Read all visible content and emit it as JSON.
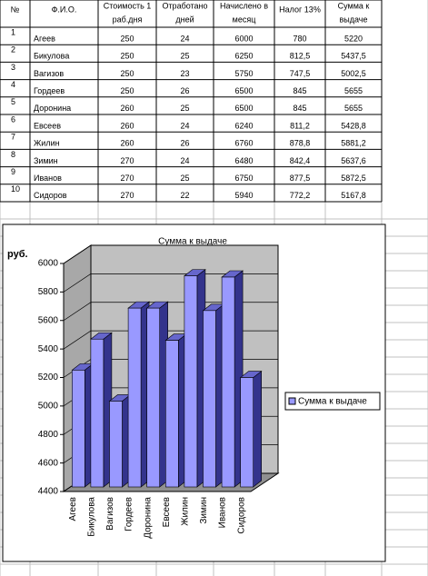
{
  "table": {
    "header": [
      [
        "№"
      ],
      [
        "Ф.И.О."
      ],
      [
        "Стоимость 1",
        "раб.дня"
      ],
      [
        "Отработано",
        "дней"
      ],
      [
        "Начислено в",
        "месяц"
      ],
      [
        "Налог 13%"
      ],
      [
        "Сумма к",
        "выдаче"
      ]
    ],
    "rows": [
      [
        "1",
        "Агеев",
        "250",
        "24",
        "6000",
        "780",
        "5220"
      ],
      [
        "2",
        "Бикулова",
        "250",
        "25",
        "6250",
        "812,5",
        "5437,5"
      ],
      [
        "3",
        "Вагизов",
        "250",
        "23",
        "5750",
        "747,5",
        "5002,5"
      ],
      [
        "4",
        "Гордеев",
        "250",
        "26",
        "6500",
        "845",
        "5655"
      ],
      [
        "5",
        "Доронина",
        "260",
        "25",
        "6500",
        "845",
        "5655"
      ],
      [
        "6",
        "Евсеев",
        "260",
        "24",
        "6240",
        "811,2",
        "5428,8"
      ],
      [
        "7",
        "Жилин",
        "260",
        "26",
        "6760",
        "878,8",
        "5881,2"
      ],
      [
        "8",
        "Зимин",
        "270",
        "24",
        "6480",
        "842,4",
        "5637,6"
      ],
      [
        "9",
        "Иванов",
        "270",
        "25",
        "6750",
        "877,5",
        "5872,5"
      ],
      [
        "10",
        "Сидоров",
        "270",
        "22",
        "5940",
        "772,2",
        "5167,8"
      ]
    ]
  },
  "chart_data": {
    "type": "bar3d",
    "title": "Сумма к выдаче",
    "y_label": "руб.",
    "categories": [
      "Агеев",
      "Бикулова",
      "Вагизов",
      "Гордеев",
      "Доронина",
      "Евсеев",
      "Жилин",
      "Зимин",
      "Иванов",
      "Сидоров"
    ],
    "series": [
      {
        "name": "Сумма к выдаче",
        "color": "#9999ff",
        "values": [
          5220,
          5437.5,
          5002.5,
          5655,
          5655,
          5428.8,
          5881.2,
          5637.6,
          5872.5,
          5167.8
        ]
      }
    ],
    "ylim": [
      4400,
      6000
    ],
    "yticks": [
      4400,
      4600,
      4800,
      5000,
      5200,
      5400,
      5600,
      5800,
      6000
    ],
    "grid": true,
    "legend": "right"
  }
}
